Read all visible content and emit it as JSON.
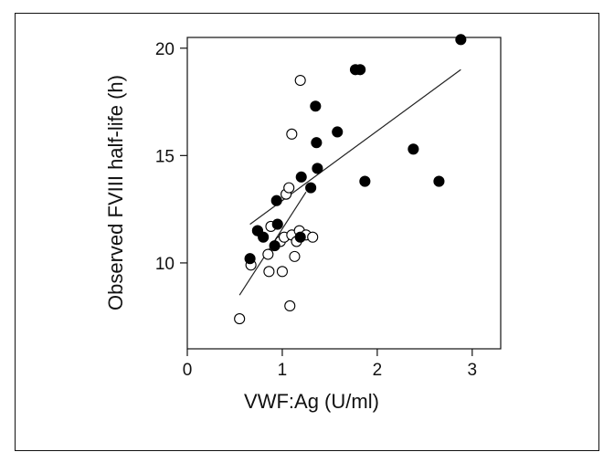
{
  "chart_data": {
    "type": "scatter",
    "xlabel": "VWF:Ag (U/ml)",
    "ylabel": "Observed FVIII half-life (h)",
    "xlim": [
      0,
      3.3
    ],
    "ylim": [
      6,
      20.5
    ],
    "x_ticks": [
      0,
      1,
      2,
      3
    ],
    "y_ticks": [
      10,
      15,
      20
    ],
    "grid": false,
    "series": [
      {
        "marker": "open-circle",
        "color": "#000000",
        "points": [
          [
            0.55,
            7.4
          ],
          [
            0.67,
            9.9
          ],
          [
            0.74,
            11.5
          ],
          [
            0.85,
            10.4
          ],
          [
            0.86,
            9.6
          ],
          [
            0.88,
            11.7
          ],
          [
            0.98,
            11.0
          ],
          [
            1.0,
            9.6
          ],
          [
            1.02,
            11.2
          ],
          [
            1.04,
            13.2
          ],
          [
            1.07,
            13.5
          ],
          [
            1.08,
            8.0
          ],
          [
            1.1,
            16.0
          ],
          [
            1.1,
            11.3
          ],
          [
            1.13,
            10.3
          ],
          [
            1.15,
            11.0
          ],
          [
            1.18,
            11.5
          ],
          [
            1.19,
            18.5
          ],
          [
            1.25,
            11.3
          ],
          [
            1.32,
            11.2
          ]
        ],
        "fit": [
          [
            0.55,
            8.5
          ],
          [
            1.25,
            13.3
          ]
        ]
      },
      {
        "marker": "filled-circle",
        "color": "#000000",
        "points": [
          [
            0.66,
            10.2
          ],
          [
            0.74,
            11.5
          ],
          [
            0.8,
            11.2
          ],
          [
            0.92,
            10.8
          ],
          [
            0.94,
            12.9
          ],
          [
            0.95,
            11.8
          ],
          [
            1.19,
            11.2
          ],
          [
            1.2,
            14.0
          ],
          [
            1.3,
            13.5
          ],
          [
            1.35,
            17.3
          ],
          [
            1.36,
            15.6
          ],
          [
            1.37,
            14.4
          ],
          [
            1.58,
            16.1
          ],
          [
            1.77,
            19.0
          ],
          [
            1.82,
            19.0
          ],
          [
            1.87,
            13.8
          ],
          [
            2.38,
            15.3
          ],
          [
            2.65,
            13.8
          ],
          [
            2.88,
            20.4
          ]
        ],
        "fit": [
          [
            0.66,
            11.8
          ],
          [
            2.88,
            19.0
          ]
        ]
      }
    ]
  }
}
